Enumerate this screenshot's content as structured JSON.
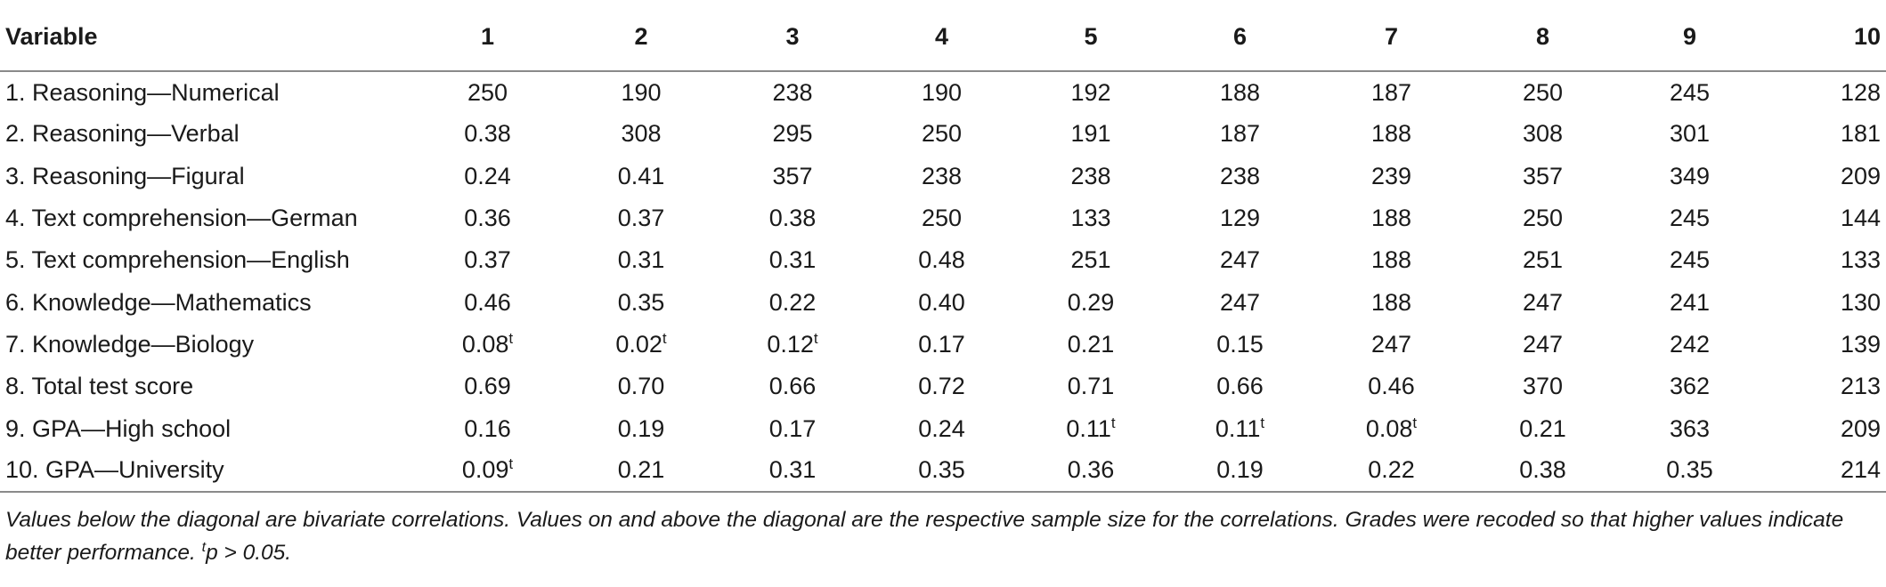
{
  "table": {
    "headers": [
      "Variable",
      "1",
      "2",
      "3",
      "4",
      "5",
      "6",
      "7",
      "8",
      "9",
      "10"
    ],
    "rows": [
      {
        "label": "1. Reasoning—Numerical",
        "cells": [
          {
            "v": "250",
            "sup": ""
          },
          {
            "v": "190",
            "sup": ""
          },
          {
            "v": "238",
            "sup": ""
          },
          {
            "v": "190",
            "sup": ""
          },
          {
            "v": "192",
            "sup": ""
          },
          {
            "v": "188",
            "sup": ""
          },
          {
            "v": "187",
            "sup": ""
          },
          {
            "v": "250",
            "sup": ""
          },
          {
            "v": "245",
            "sup": ""
          },
          {
            "v": "128",
            "sup": ""
          }
        ]
      },
      {
        "label": "2. Reasoning—Verbal",
        "cells": [
          {
            "v": "0.38",
            "sup": ""
          },
          {
            "v": "308",
            "sup": ""
          },
          {
            "v": "295",
            "sup": ""
          },
          {
            "v": "250",
            "sup": ""
          },
          {
            "v": "191",
            "sup": ""
          },
          {
            "v": "187",
            "sup": ""
          },
          {
            "v": "188",
            "sup": ""
          },
          {
            "v": "308",
            "sup": ""
          },
          {
            "v": "301",
            "sup": ""
          },
          {
            "v": "181",
            "sup": ""
          }
        ]
      },
      {
        "label": "3. Reasoning—Figural",
        "cells": [
          {
            "v": "0.24",
            "sup": ""
          },
          {
            "v": "0.41",
            "sup": ""
          },
          {
            "v": "357",
            "sup": ""
          },
          {
            "v": "238",
            "sup": ""
          },
          {
            "v": "238",
            "sup": ""
          },
          {
            "v": "238",
            "sup": ""
          },
          {
            "v": "239",
            "sup": ""
          },
          {
            "v": "357",
            "sup": ""
          },
          {
            "v": "349",
            "sup": ""
          },
          {
            "v": "209",
            "sup": ""
          }
        ]
      },
      {
        "label": "4. Text comprehension—German",
        "cells": [
          {
            "v": "0.36",
            "sup": ""
          },
          {
            "v": "0.37",
            "sup": ""
          },
          {
            "v": "0.38",
            "sup": ""
          },
          {
            "v": "250",
            "sup": ""
          },
          {
            "v": "133",
            "sup": ""
          },
          {
            "v": "129",
            "sup": ""
          },
          {
            "v": "188",
            "sup": ""
          },
          {
            "v": "250",
            "sup": ""
          },
          {
            "v": "245",
            "sup": ""
          },
          {
            "v": "144",
            "sup": ""
          }
        ]
      },
      {
        "label": "5. Text comprehension—English",
        "cells": [
          {
            "v": "0.37",
            "sup": ""
          },
          {
            "v": "0.31",
            "sup": ""
          },
          {
            "v": "0.31",
            "sup": ""
          },
          {
            "v": "0.48",
            "sup": ""
          },
          {
            "v": "251",
            "sup": ""
          },
          {
            "v": "247",
            "sup": ""
          },
          {
            "v": "188",
            "sup": ""
          },
          {
            "v": "251",
            "sup": ""
          },
          {
            "v": "245",
            "sup": ""
          },
          {
            "v": "133",
            "sup": ""
          }
        ]
      },
      {
        "label": "6. Knowledge—Mathematics",
        "cells": [
          {
            "v": "0.46",
            "sup": ""
          },
          {
            "v": "0.35",
            "sup": ""
          },
          {
            "v": "0.22",
            "sup": ""
          },
          {
            "v": "0.40",
            "sup": ""
          },
          {
            "v": "0.29",
            "sup": ""
          },
          {
            "v": "247",
            "sup": ""
          },
          {
            "v": "188",
            "sup": ""
          },
          {
            "v": "247",
            "sup": ""
          },
          {
            "v": "241",
            "sup": ""
          },
          {
            "v": "130",
            "sup": ""
          }
        ]
      },
      {
        "label": "7. Knowledge—Biology",
        "cells": [
          {
            "v": "0.08",
            "sup": "t"
          },
          {
            "v": "0.02",
            "sup": "t"
          },
          {
            "v": "0.12",
            "sup": "t"
          },
          {
            "v": "0.17",
            "sup": ""
          },
          {
            "v": "0.21",
            "sup": ""
          },
          {
            "v": "0.15",
            "sup": ""
          },
          {
            "v": "247",
            "sup": ""
          },
          {
            "v": "247",
            "sup": ""
          },
          {
            "v": "242",
            "sup": ""
          },
          {
            "v": "139",
            "sup": ""
          }
        ]
      },
      {
        "label": "8. Total test score",
        "cells": [
          {
            "v": "0.69",
            "sup": ""
          },
          {
            "v": "0.70",
            "sup": ""
          },
          {
            "v": "0.66",
            "sup": ""
          },
          {
            "v": "0.72",
            "sup": ""
          },
          {
            "v": "0.71",
            "sup": ""
          },
          {
            "v": "0.66",
            "sup": ""
          },
          {
            "v": "0.46",
            "sup": ""
          },
          {
            "v": "370",
            "sup": ""
          },
          {
            "v": "362",
            "sup": ""
          },
          {
            "v": "213",
            "sup": ""
          }
        ]
      },
      {
        "label": "9. GPA—High school",
        "cells": [
          {
            "v": "0.16",
            "sup": ""
          },
          {
            "v": "0.19",
            "sup": ""
          },
          {
            "v": "0.17",
            "sup": ""
          },
          {
            "v": "0.24",
            "sup": ""
          },
          {
            "v": "0.11",
            "sup": "t"
          },
          {
            "v": "0.11",
            "sup": "t"
          },
          {
            "v": "0.08",
            "sup": "t"
          },
          {
            "v": "0.21",
            "sup": ""
          },
          {
            "v": "363",
            "sup": ""
          },
          {
            "v": "209",
            "sup": ""
          }
        ]
      },
      {
        "label": "10. GPA—University",
        "cells": [
          {
            "v": "0.09",
            "sup": "t"
          },
          {
            "v": "0.21",
            "sup": ""
          },
          {
            "v": "0.31",
            "sup": ""
          },
          {
            "v": "0.35",
            "sup": ""
          },
          {
            "v": "0.36",
            "sup": ""
          },
          {
            "v": "0.19",
            "sup": ""
          },
          {
            "v": "0.22",
            "sup": ""
          },
          {
            "v": "0.38",
            "sup": ""
          },
          {
            "v": "0.35",
            "sup": ""
          },
          {
            "v": "214",
            "sup": ""
          }
        ]
      }
    ]
  },
  "note": {
    "text": "Values below the diagonal are bivariate correlations. Values on and above the diagonal are the respective sample size for the correlations. Grades were recoded so that higher values indicate better performance. ",
    "sup": "t",
    "tail": "p > 0.05."
  }
}
